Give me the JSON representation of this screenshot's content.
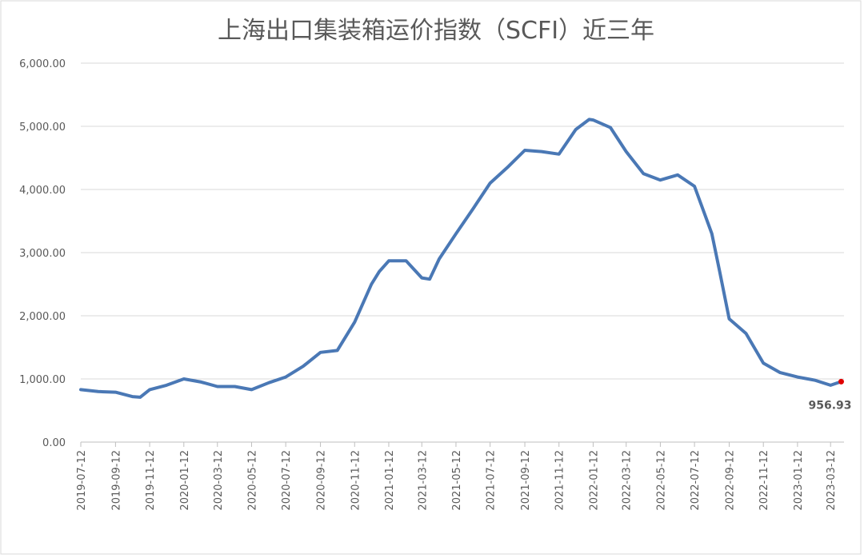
{
  "chart_data": {
    "type": "line",
    "title": "上海出口集装箱运价指数（SCFI）近三年",
    "x": [
      "2019-07-12",
      "2019-08-12",
      "2019-09-12",
      "2019-10-12",
      "2019-10-26",
      "2019-11-12",
      "2019-12-12",
      "2020-01-12",
      "2020-02-12",
      "2020-03-12",
      "2020-04-12",
      "2020-05-12",
      "2020-06-12",
      "2020-07-12",
      "2020-08-12",
      "2020-09-12",
      "2020-10-12",
      "2020-11-12",
      "2020-12-12",
      "2020-12-26",
      "2021-01-12",
      "2021-02-12",
      "2021-03-12",
      "2021-03-26",
      "2021-04-12",
      "2021-05-12",
      "2021-06-12",
      "2021-07-12",
      "2021-08-12",
      "2021-09-12",
      "2021-10-12",
      "2021-11-12",
      "2021-12-12",
      "2022-01-05",
      "2022-01-12",
      "2022-02-12",
      "2022-03-12",
      "2022-04-12",
      "2022-05-12",
      "2022-06-12",
      "2022-07-12",
      "2022-08-12",
      "2022-08-26",
      "2022-09-12",
      "2022-10-12",
      "2022-11-12",
      "2022-12-12",
      "2023-01-12",
      "2023-02-12",
      "2023-03-12",
      "2023-03-31"
    ],
    "series": [
      {
        "color": "#4a78b5",
        "values": [
          830,
          800,
          790,
          720,
          710,
          830,
          900,
          1000,
          950,
          880,
          880,
          830,
          940,
          1030,
          1200,
          1420,
          1450,
          1900,
          2500,
          2700,
          2870,
          2870,
          2600,
          2580,
          2900,
          3300,
          3700,
          4100,
          4350,
          4620,
          4600,
          4560,
          4950,
          5109,
          5100,
          4980,
          4600,
          4250,
          4150,
          4230,
          4050,
          3300,
          2700,
          1950,
          1720,
          1250,
          1100,
          1030,
          980,
          900,
          956.93
        ]
      }
    ],
    "label_point_color": "#e00000",
    "xlim": [
      "2019-07-12",
      "2023-04-05"
    ],
    "xticks": [
      "2019-07-12",
      "2019-09-12",
      "2019-11-12",
      "2020-01-12",
      "2020-03-12",
      "2020-05-12",
      "2020-07-12",
      "2020-09-12",
      "2020-11-12",
      "2021-01-12",
      "2021-03-12",
      "2021-05-12",
      "2021-07-12",
      "2021-09-12",
      "2021-11-12",
      "2022-01-12",
      "2022-03-12",
      "2022-05-12",
      "2022-07-12",
      "2022-09-12",
      "2022-11-12",
      "2023-01-12",
      "2023-03-12"
    ],
    "ylim": [
      0,
      6000
    ],
    "yticks": [
      {
        "value": 0,
        "label": "0.00"
      },
      {
        "value": 1000,
        "label": "1,000.00"
      },
      {
        "value": 2000,
        "label": "2,000.00"
      },
      {
        "value": 3000,
        "label": "3,000.00"
      },
      {
        "value": 4000,
        "label": "4,000.00"
      },
      {
        "value": 5000,
        "label": "5,000.00"
      },
      {
        "value": 6000,
        "label": "6,000.00"
      }
    ],
    "grid": true
  }
}
